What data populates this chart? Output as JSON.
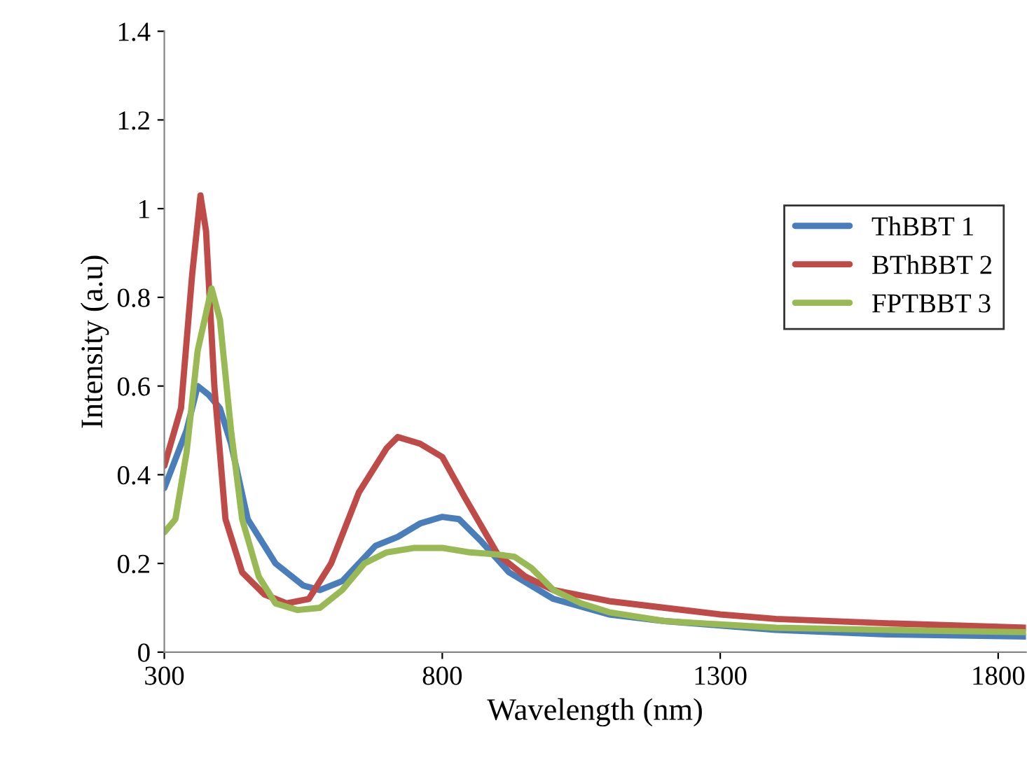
{
  "chart_data": {
    "type": "line",
    "xlabel": "Wavelength (nm)",
    "ylabel": "Intensity (a.u)",
    "xlim": [
      300,
      1850
    ],
    "ylim": [
      0,
      1.4
    ],
    "xticks": [
      300,
      800,
      1300,
      1800
    ],
    "yticks": [
      0,
      0.2,
      0.4,
      0.6,
      0.8,
      1,
      1.2,
      1.4
    ],
    "grid": false,
    "legend": "right",
    "marker": "none",
    "line_style": "solid",
    "series": [
      {
        "name": "ThBBT 1",
        "color": "#4a7ebb",
        "x": [
          300,
          340,
          360,
          380,
          400,
          420,
          450,
          500,
          550,
          580,
          620,
          680,
          720,
          760,
          800,
          830,
          870,
          920,
          1000,
          1100,
          1200,
          1300,
          1400,
          1600,
          1850
        ],
        "values": [
          0.37,
          0.5,
          0.6,
          0.58,
          0.55,
          0.47,
          0.3,
          0.2,
          0.15,
          0.14,
          0.16,
          0.24,
          0.26,
          0.29,
          0.305,
          0.3,
          0.25,
          0.18,
          0.12,
          0.085,
          0.07,
          0.06,
          0.05,
          0.04,
          0.035
        ]
      },
      {
        "name": "BThBBT 2",
        "color": "#be4b48",
        "x": [
          300,
          330,
          350,
          365,
          375,
          390,
          410,
          440,
          480,
          520,
          560,
          600,
          650,
          700,
          720,
          760,
          800,
          840,
          900,
          950,
          1000,
          1100,
          1200,
          1300,
          1400,
          1600,
          1850
        ],
        "values": [
          0.42,
          0.55,
          0.85,
          1.03,
          0.95,
          0.6,
          0.3,
          0.18,
          0.13,
          0.11,
          0.12,
          0.2,
          0.36,
          0.46,
          0.485,
          0.47,
          0.44,
          0.35,
          0.22,
          0.17,
          0.14,
          0.115,
          0.1,
          0.085,
          0.075,
          0.065,
          0.055
        ]
      },
      {
        "name": "FPTBBT 3",
        "color": "#98b954",
        "x": [
          300,
          320,
          340,
          360,
          385,
          400,
          420,
          440,
          470,
          500,
          540,
          580,
          620,
          660,
          700,
          750,
          800,
          850,
          900,
          930,
          960,
          1000,
          1050,
          1100,
          1200,
          1400,
          1600,
          1850
        ],
        "values": [
          0.27,
          0.3,
          0.45,
          0.68,
          0.82,
          0.75,
          0.5,
          0.3,
          0.17,
          0.11,
          0.095,
          0.1,
          0.14,
          0.2,
          0.225,
          0.235,
          0.235,
          0.225,
          0.22,
          0.215,
          0.19,
          0.14,
          0.11,
          0.09,
          0.07,
          0.055,
          0.05,
          0.045
        ]
      }
    ]
  }
}
